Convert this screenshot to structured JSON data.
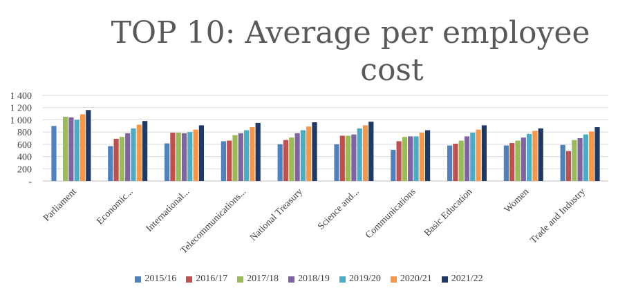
{
  "chart_data": {
    "type": "bar",
    "title": "TOP 10: Average per employee cost",
    "title_lines": [
      "TOP 10: Average per employee",
      "cost"
    ],
    "xlabel": "",
    "ylabel": "",
    "ylim": [
      0,
      1400
    ],
    "yticks": [
      0,
      200,
      400,
      600,
      800,
      1000,
      1200,
      1400
    ],
    "ytick_labels": [
      "-",
      "200",
      "400",
      "600",
      "800",
      "1 000",
      "1 200",
      "1 400"
    ],
    "grid": true,
    "legend_position": "bottom",
    "categories": [
      "Parliament",
      "Economic...",
      "International...",
      "Telecommunications...",
      "National Treasury",
      "Science and...",
      "Communications",
      "Basic Education",
      "Women",
      "Trade and Industry"
    ],
    "series": [
      {
        "name": "2015/16",
        "color": "#4f81bd",
        "values": [
          900,
          570,
          615,
          650,
          600,
          600,
          510,
          580,
          580,
          590
        ]
      },
      {
        "name": "2016/17",
        "color": "#c0504d",
        "values": [
          0,
          690,
          790,
          660,
          670,
          740,
          650,
          610,
          620,
          490
        ]
      },
      {
        "name": "2017/18",
        "color": "#9bbb59",
        "values": [
          1050,
          720,
          790,
          750,
          710,
          740,
          720,
          660,
          660,
          670
        ]
      },
      {
        "name": "2018/19",
        "color": "#8064a2",
        "values": [
          1040,
          780,
          780,
          780,
          780,
          760,
          730,
          730,
          710,
          700
        ]
      },
      {
        "name": "2019/20",
        "color": "#4bacc6",
        "values": [
          1000,
          860,
          800,
          830,
          830,
          860,
          730,
          790,
          770,
          760
        ]
      },
      {
        "name": "2020/21",
        "color": "#f79646",
        "values": [
          1090,
          920,
          840,
          880,
          890,
          910,
          790,
          840,
          820,
          810
        ]
      },
      {
        "name": "2021/22",
        "color": "#1f3864",
        "values": [
          1160,
          980,
          910,
          950,
          960,
          970,
          830,
          910,
          860,
          880
        ]
      }
    ]
  }
}
